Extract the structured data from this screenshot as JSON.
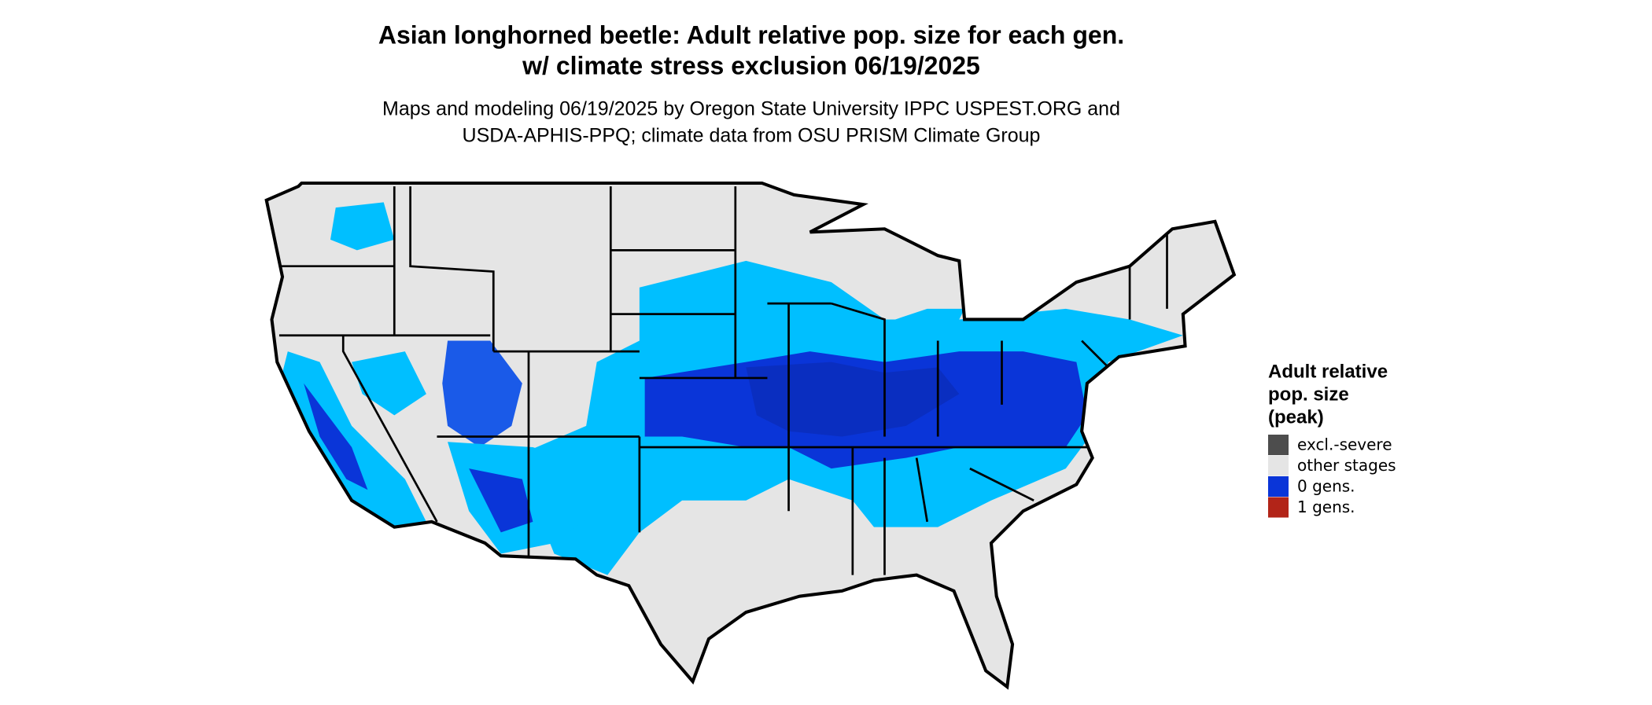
{
  "title": [
    "Asian longhorned beetle: Adult relative pop. size for each gen.",
    "w/ climate stress exclusion 06/19/2025"
  ],
  "subtitle": [
    "Maps and modeling 06/19/2025 by Oregon State University IPPC USPEST.ORG and",
    "USDA-APHIS-PPQ; climate data from OSU PRISM Climate Group"
  ],
  "legend": {
    "title": [
      "Adult relative",
      "pop. size",
      "(peak)"
    ],
    "items": [
      {
        "label": "excl.-severe",
        "color": "#4d4d4d"
      },
      {
        "label": "other stages",
        "color": "#e5e5e5"
      },
      {
        "label": "0 gens.",
        "color": "#0a35d8"
      },
      {
        "label": "1 gens.",
        "color": "#b22418"
      }
    ]
  }
}
